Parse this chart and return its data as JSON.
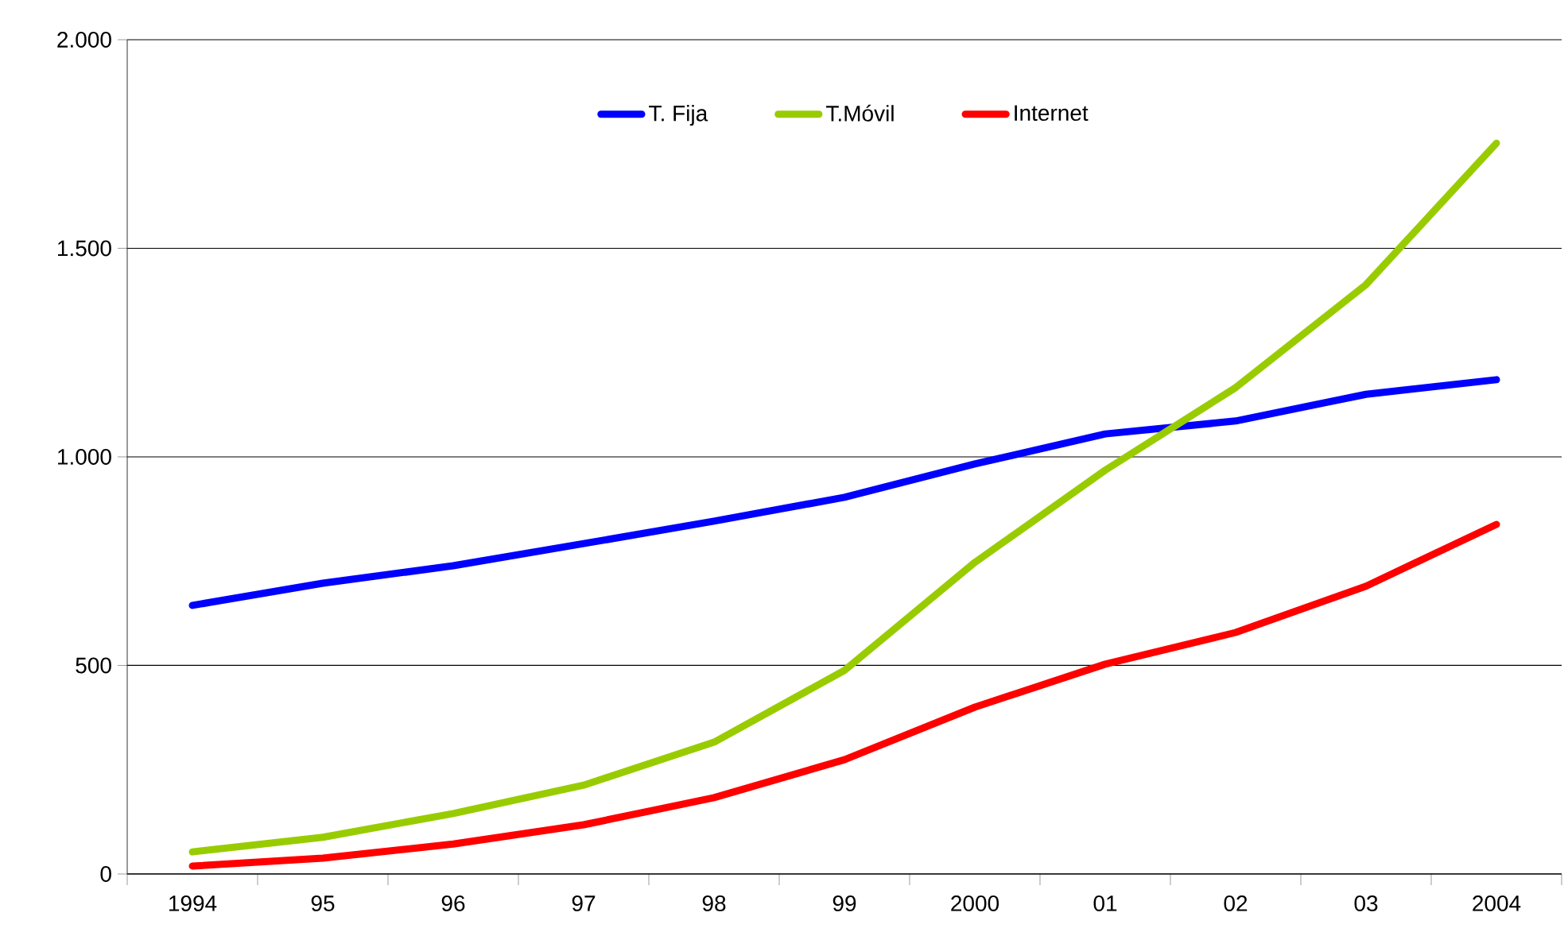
{
  "chart_data": {
    "type": "line",
    "categories": [
      "1994",
      "95",
      "96",
      "97",
      "98",
      "99",
      "2000",
      "01",
      "02",
      "03",
      "2004"
    ],
    "series": [
      {
        "name": "T. Fija",
        "color": "#0000ff",
        "values": [
          644,
          697,
          739,
          792,
          846,
          903,
          983,
          1055,
          1086,
          1150,
          1185
        ]
      },
      {
        "name": "T.Móvil",
        "color": "#99cc00",
        "values": [
          53,
          88,
          145,
          213,
          316,
          488,
          747,
          968,
          1166,
          1413,
          1752
        ]
      },
      {
        "name": "Internet",
        "color": "#ff0000",
        "values": [
          19,
          38,
          72,
          118,
          183,
          274,
          400,
          503,
          579,
          690,
          838
        ]
      }
    ],
    "ylim": [
      0,
      2000
    ],
    "yticks": [
      0,
      500,
      {
        "value": 1000,
        "label": "1.000"
      },
      {
        "value": 1500,
        "label": "1.500"
      },
      {
        "value": 2000,
        "label": "2.000"
      }
    ],
    "grid": "y",
    "legend": "top",
    "marker": "none",
    "line_style": "solid"
  }
}
